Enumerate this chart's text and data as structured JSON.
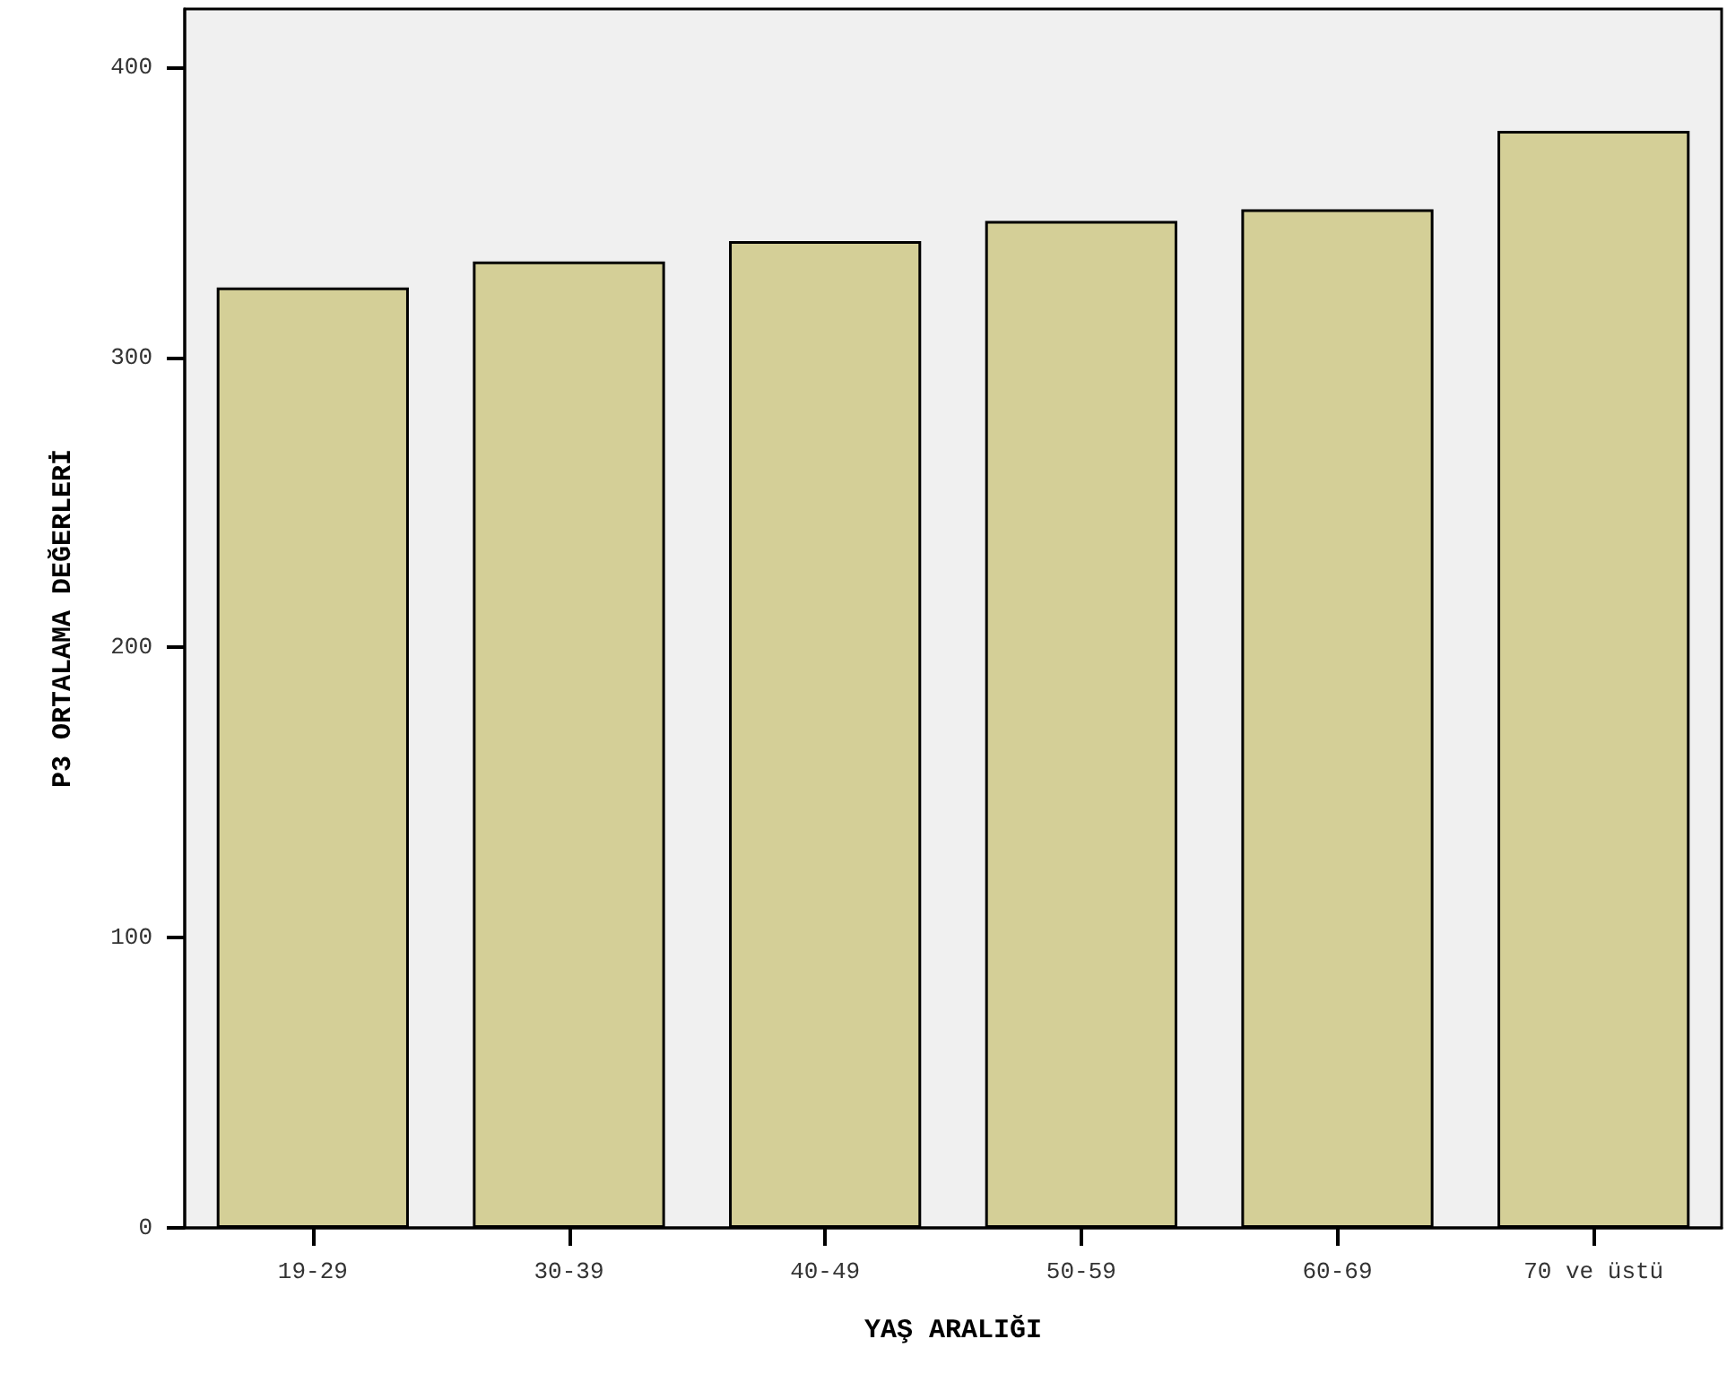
{
  "chart_data": {
    "type": "bar",
    "xlabel": "YAŞ ARALIĞI",
    "ylabel": "P3 ORTALAMA DEĞERLERİ",
    "categories": [
      "19-29",
      "30-39",
      "40-49",
      "50-59",
      "60-69",
      "70 ve üstü"
    ],
    "values": [
      324,
      333,
      340,
      347,
      351,
      378
    ],
    "color": "#d4cf97",
    "ylim": [
      0,
      420
    ],
    "yticks": [
      0,
      100,
      200,
      300,
      400
    ],
    "grid": false
  }
}
